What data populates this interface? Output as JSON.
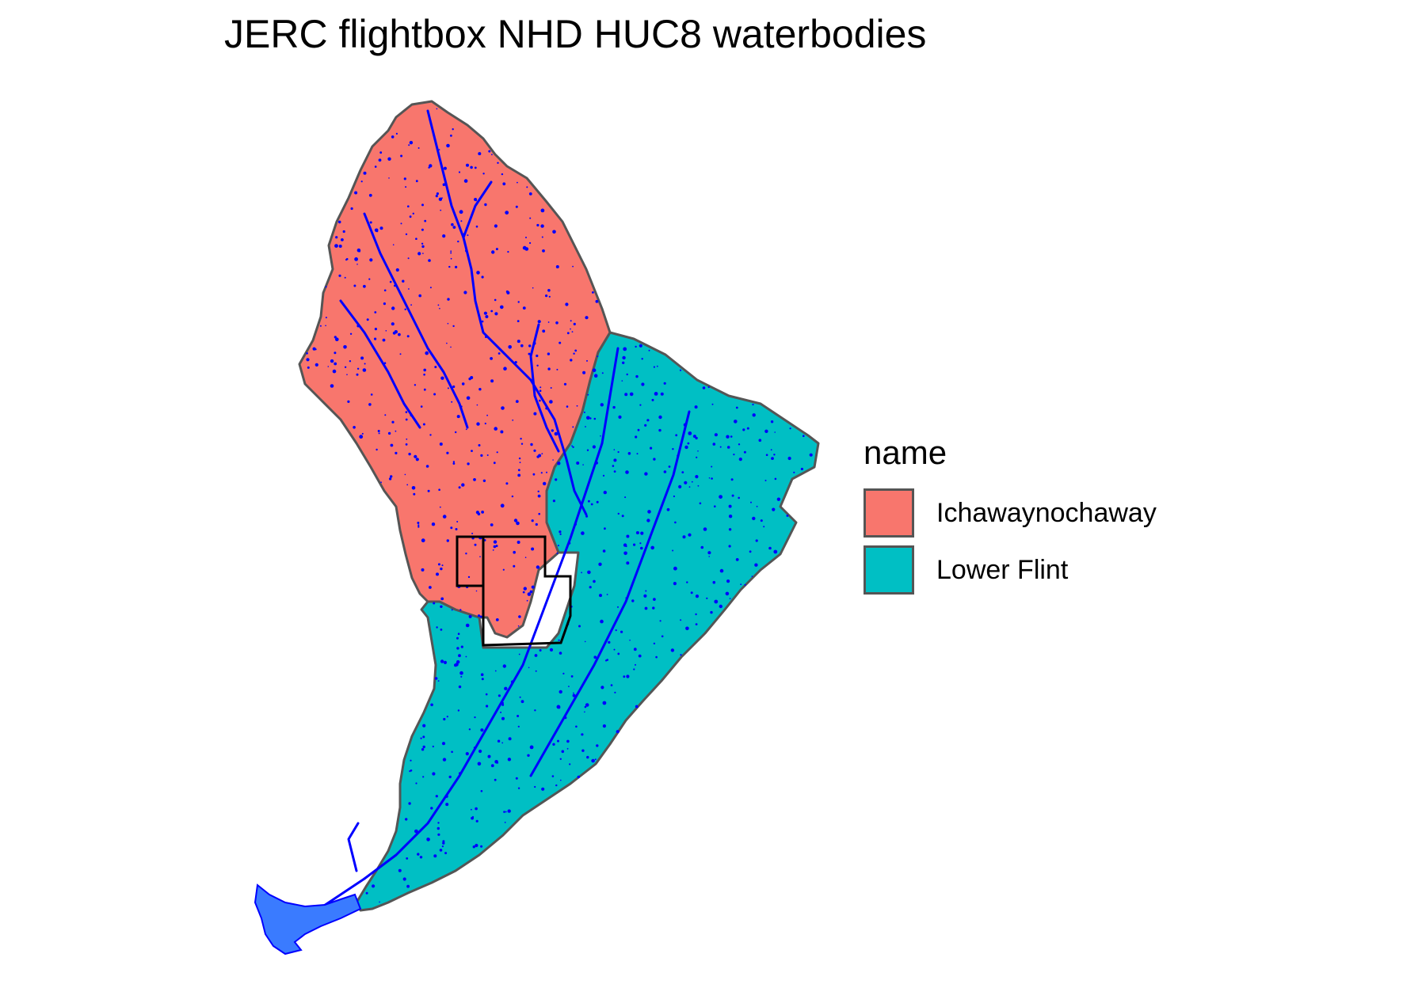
{
  "title": "JERC flightbox NHD HUC8 waterbodies",
  "legend": {
    "title": "name",
    "items": [
      {
        "label": "Ichawaynochaway",
        "color": "#F8766D"
      },
      {
        "label": "Lower Flint",
        "color": "#00BFC4"
      }
    ]
  },
  "colors": {
    "waterbody_stroke": "#0000FF",
    "waterbody_fill": "#3A7BFF",
    "huc_border": "#555555",
    "flightbox_stroke": "#000000"
  }
}
